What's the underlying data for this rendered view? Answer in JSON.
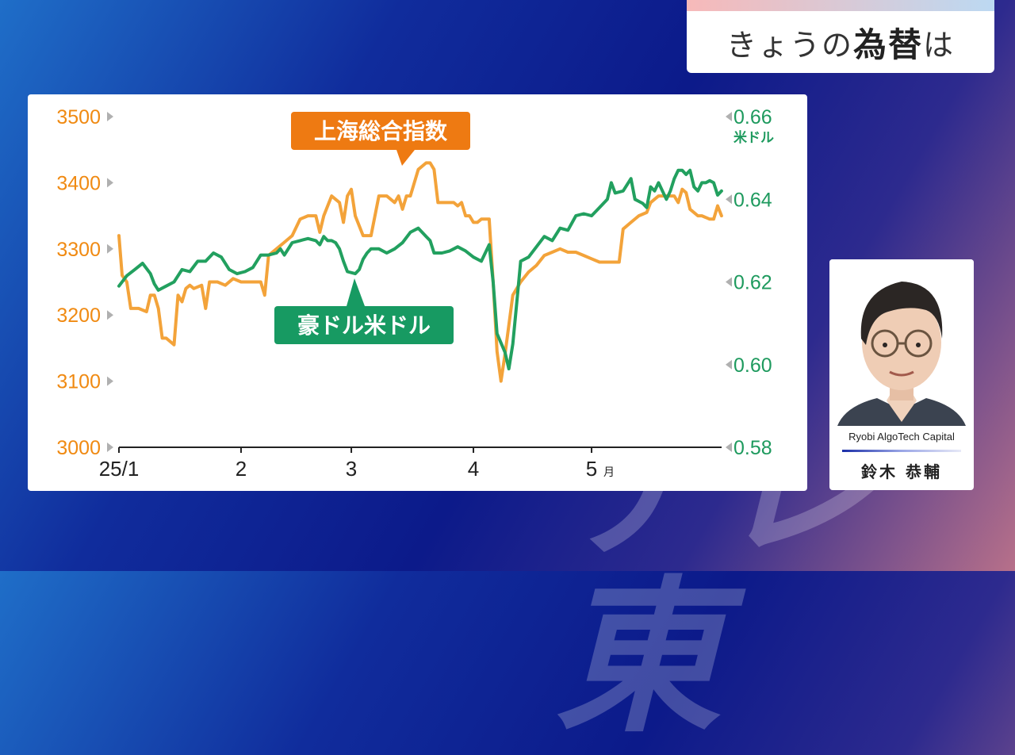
{
  "watermark": "テレ東",
  "topic": {
    "prefix": "きょうの",
    "strong": "為替",
    "suffix": "は"
  },
  "person": {
    "company": "Ryobi AlgoTech Capital",
    "name": "鈴木 恭輔",
    "portrait_icon": "person-portrait-icon"
  },
  "chart_data": {
    "type": "line",
    "x_ticks": [
      {
        "label": "25/1",
        "day": 0
      },
      {
        "label": "2",
        "day": 31
      },
      {
        "label": "3",
        "day": 59
      },
      {
        "label": "4",
        "day": 90
      },
      {
        "label": "5",
        "unit": "月",
        "day": 120
      }
    ],
    "xlim": [
      0,
      151
    ],
    "y_left": {
      "ticks": [
        "3500",
        "3400",
        "3300",
        "3200",
        "3100",
        "3000"
      ],
      "ylim": [
        3000,
        3500
      ],
      "color": "#f08a12"
    },
    "y_right": {
      "unit": "米ドル",
      "ticks": [
        "0.66",
        "0.64",
        "0.62",
        "0.60",
        "0.58"
      ],
      "ylim": [
        0.58,
        0.66
      ],
      "color": "#1e9a5e"
    },
    "series": [
      {
        "name": "上海総合指数",
        "axis": "left",
        "color": "#f3a33a",
        "label_bg": "#ee7a12",
        "points": [
          [
            0,
            3320
          ],
          [
            0.8,
            3260
          ],
          [
            2,
            3250
          ],
          [
            3,
            3210
          ],
          [
            5,
            3210
          ],
          [
            7,
            3205
          ],
          [
            8,
            3230
          ],
          [
            9,
            3230
          ],
          [
            10,
            3210
          ],
          [
            11,
            3165
          ],
          [
            12,
            3165
          ],
          [
            13,
            3160
          ],
          [
            14,
            3155
          ],
          [
            15,
            3230
          ],
          [
            16,
            3220
          ],
          [
            17,
            3240
          ],
          [
            18,
            3245
          ],
          [
            19,
            3240
          ],
          [
            21,
            3245
          ],
          [
            22,
            3210
          ],
          [
            23,
            3250
          ],
          [
            25,
            3250
          ],
          [
            27,
            3245
          ],
          [
            29,
            3255
          ],
          [
            31,
            3250
          ],
          [
            33,
            3250
          ],
          [
            35,
            3250
          ],
          [
            36,
            3250
          ],
          [
            37,
            3230
          ],
          [
            38,
            3290
          ],
          [
            40,
            3300
          ],
          [
            42,
            3310
          ],
          [
            44,
            3320
          ],
          [
            46,
            3345
          ],
          [
            48,
            3350
          ],
          [
            50,
            3350
          ],
          [
            51,
            3325
          ],
          [
            52,
            3350
          ],
          [
            54,
            3380
          ],
          [
            55,
            3375
          ],
          [
            56,
            3370
          ],
          [
            57,
            3340
          ],
          [
            58,
            3380
          ],
          [
            59,
            3390
          ],
          [
            60,
            3350
          ],
          [
            62,
            3320
          ],
          [
            64,
            3320
          ],
          [
            66,
            3380
          ],
          [
            68,
            3380
          ],
          [
            70,
            3370
          ],
          [
            71,
            3380
          ],
          [
            72,
            3360
          ],
          [
            73,
            3380
          ],
          [
            74,
            3380
          ],
          [
            76,
            3420
          ],
          [
            78,
            3430
          ],
          [
            79,
            3430
          ],
          [
            80,
            3420
          ],
          [
            81,
            3370
          ],
          [
            83,
            3370
          ],
          [
            85,
            3370
          ],
          [
            86,
            3365
          ],
          [
            87,
            3370
          ],
          [
            88,
            3350
          ],
          [
            89,
            3350
          ],
          [
            90,
            3340
          ],
          [
            91,
            3340
          ],
          [
            92,
            3345
          ],
          [
            94,
            3345
          ],
          [
            95,
            3250
          ],
          [
            96,
            3145
          ],
          [
            97,
            3100
          ],
          [
            98,
            3140
          ],
          [
            100,
            3230
          ],
          [
            102,
            3250
          ],
          [
            104,
            3265
          ],
          [
            106,
            3275
          ],
          [
            108,
            3290
          ],
          [
            110,
            3295
          ],
          [
            112,
            3300
          ],
          [
            114,
            3295
          ],
          [
            116,
            3295
          ],
          [
            118,
            3290
          ],
          [
            120,
            3285
          ],
          [
            122,
            3280
          ],
          [
            124,
            3280
          ],
          [
            126,
            3280
          ],
          [
            127,
            3280
          ],
          [
            128,
            3330
          ],
          [
            130,
            3340
          ],
          [
            132,
            3350
          ],
          [
            134,
            3355
          ],
          [
            135,
            3370
          ],
          [
            137,
            3380
          ],
          [
            139,
            3380
          ],
          [
            141,
            3380
          ],
          [
            142,
            3370
          ],
          [
            143,
            3390
          ],
          [
            144,
            3385
          ],
          [
            145,
            3360
          ],
          [
            147,
            3350
          ],
          [
            148,
            3350
          ],
          [
            150,
            3345
          ],
          [
            151,
            3345
          ],
          [
            152,
            3365
          ],
          [
            153,
            3350
          ]
        ]
      },
      {
        "name": "豪ドル米ドル",
        "axis": "right",
        "color": "#22a05f",
        "label_bg": "#179a62",
        "points": [
          [
            0,
            0.619
          ],
          [
            2,
            0.6215
          ],
          [
            4,
            0.623
          ],
          [
            6,
            0.6245
          ],
          [
            8,
            0.622
          ],
          [
            9,
            0.6195
          ],
          [
            10,
            0.618
          ],
          [
            12,
            0.619
          ],
          [
            14,
            0.62
          ],
          [
            16,
            0.623
          ],
          [
            18,
            0.6225
          ],
          [
            20,
            0.625
          ],
          [
            22,
            0.625
          ],
          [
            24,
            0.627
          ],
          [
            26,
            0.626
          ],
          [
            28,
            0.623
          ],
          [
            30,
            0.622
          ],
          [
            32,
            0.6225
          ],
          [
            34,
            0.6235
          ],
          [
            36,
            0.6265
          ],
          [
            38,
            0.6265
          ],
          [
            40,
            0.627
          ],
          [
            41,
            0.628
          ],
          [
            42,
            0.6265
          ],
          [
            44,
            0.6295
          ],
          [
            46,
            0.63
          ],
          [
            48,
            0.6305
          ],
          [
            50,
            0.63
          ],
          [
            51,
            0.629
          ],
          [
            52,
            0.631
          ],
          [
            53,
            0.63
          ],
          [
            54,
            0.63
          ],
          [
            55,
            0.6295
          ],
          [
            56,
            0.628
          ],
          [
            57,
            0.625
          ],
          [
            58,
            0.6225
          ],
          [
            60,
            0.622
          ],
          [
            61,
            0.623
          ],
          [
            62,
            0.6255
          ],
          [
            63,
            0.627
          ],
          [
            64,
            0.628
          ],
          [
            66,
            0.628
          ],
          [
            68,
            0.627
          ],
          [
            70,
            0.628
          ],
          [
            72,
            0.6295
          ],
          [
            74,
            0.632
          ],
          [
            76,
            0.633
          ],
          [
            78,
            0.631
          ],
          [
            79,
            0.63
          ],
          [
            80,
            0.627
          ],
          [
            82,
            0.627
          ],
          [
            84,
            0.6275
          ],
          [
            85,
            0.628
          ],
          [
            86,
            0.6285
          ],
          [
            88,
            0.6275
          ],
          [
            90,
            0.626
          ],
          [
            92,
            0.625
          ],
          [
            94,
            0.629
          ],
          [
            95,
            0.62
          ],
          [
            96,
            0.6075
          ],
          [
            98,
            0.603
          ],
          [
            99,
            0.599
          ],
          [
            100,
            0.605
          ],
          [
            101,
            0.615
          ],
          [
            102,
            0.625
          ],
          [
            104,
            0.626
          ],
          [
            106,
            0.6285
          ],
          [
            108,
            0.631
          ],
          [
            110,
            0.63
          ],
          [
            112,
            0.633
          ],
          [
            114,
            0.6325
          ],
          [
            116,
            0.636
          ],
          [
            118,
            0.6365
          ],
          [
            120,
            0.636
          ],
          [
            122,
            0.638
          ],
          [
            124,
            0.64
          ],
          [
            125,
            0.644
          ],
          [
            126,
            0.6415
          ],
          [
            128,
            0.642
          ],
          [
            130,
            0.645
          ],
          [
            131,
            0.64
          ],
          [
            132,
            0.6395
          ],
          [
            133,
            0.639
          ],
          [
            134,
            0.638
          ],
          [
            135,
            0.643
          ],
          [
            136,
            0.642
          ],
          [
            137,
            0.644
          ],
          [
            138,
            0.642
          ],
          [
            139,
            0.64
          ],
          [
            140,
            0.642
          ],
          [
            141,
            0.645
          ],
          [
            142,
            0.647
          ],
          [
            143,
            0.647
          ],
          [
            144,
            0.646
          ],
          [
            145,
            0.647
          ],
          [
            146,
            0.643
          ],
          [
            147,
            0.642
          ],
          [
            148,
            0.644
          ],
          [
            149,
            0.644
          ],
          [
            150,
            0.6445
          ],
          [
            151,
            0.644
          ],
          [
            152,
            0.641
          ],
          [
            153,
            0.642
          ]
        ]
      }
    ]
  }
}
